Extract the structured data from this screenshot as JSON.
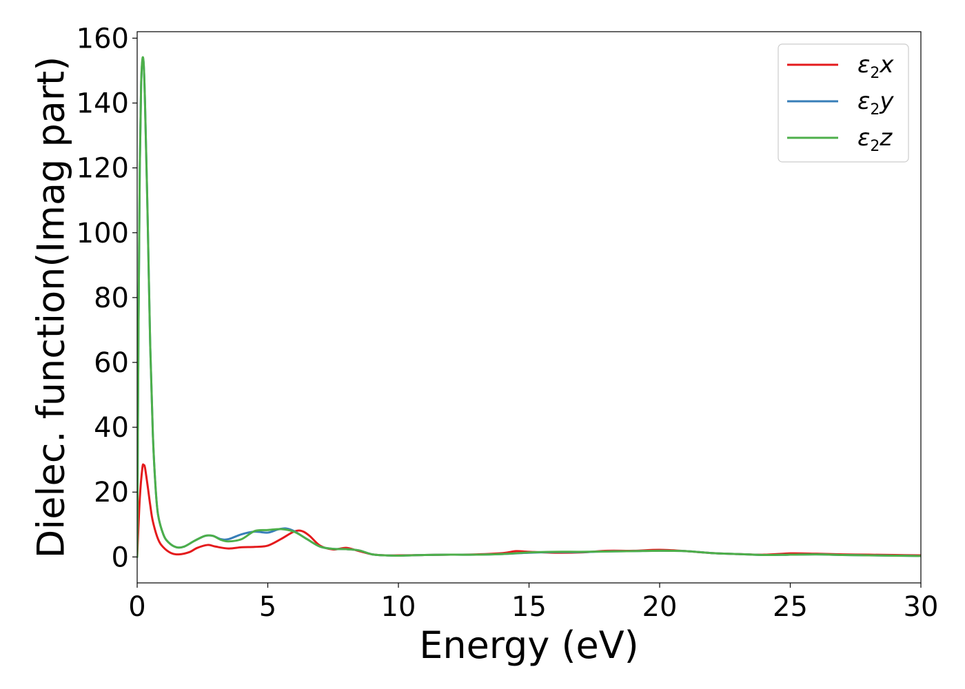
{
  "chart_data": {
    "type": "line",
    "xlabel": "Energy (eV)",
    "ylabel": "Dielec. function(Imag part)",
    "xlim": [
      0,
      30
    ],
    "ylim": [
      -8,
      162
    ],
    "xticks": [
      0,
      5,
      10,
      15,
      20,
      25,
      30
    ],
    "yticks": [
      0,
      20,
      40,
      60,
      80,
      100,
      120,
      140,
      160
    ],
    "legend_position": "top-right",
    "grid": false,
    "series": [
      {
        "name": "ε2x",
        "label_base": "ε",
        "label_sub": "2",
        "label_var": "x",
        "color": "#e41a1c",
        "x": [
          0,
          0.1,
          0.2,
          0.25,
          0.3,
          0.4,
          0.5,
          0.6,
          0.8,
          1.0,
          1.3,
          1.6,
          2.0,
          2.3,
          2.7,
          3.0,
          3.5,
          4.0,
          4.5,
          5.0,
          5.5,
          6.0,
          6.3,
          6.6,
          7.0,
          7.5,
          8.0,
          8.5,
          9.0,
          9.5,
          10,
          11,
          12,
          13,
          14,
          14.5,
          15,
          16,
          17,
          18,
          19,
          20,
          21,
          22,
          23,
          24,
          25,
          26,
          27,
          28,
          29,
          30
        ],
        "y": [
          0,
          18,
          27.5,
          28.3,
          27.5,
          22,
          16,
          11,
          5.5,
          3,
          1.2,
          0.8,
          1.5,
          2.8,
          3.7,
          3.2,
          2.6,
          3.0,
          3.1,
          3.5,
          5.5,
          7.8,
          8.0,
          6.5,
          3.5,
          2.3,
          2.8,
          1.8,
          0.8,
          0.5,
          0.5,
          0.6,
          0.7,
          0.8,
          1.2,
          1.8,
          1.6,
          1.3,
          1.4,
          1.9,
          1.9,
          2.2,
          1.8,
          1.2,
          0.9,
          0.7,
          1.1,
          1.0,
          0.8,
          0.7,
          0.6,
          0.5
        ]
      },
      {
        "name": "ε2y",
        "label_base": "ε",
        "label_sub": "2",
        "label_var": "y",
        "color": "#377eb8",
        "x": [
          0,
          0.05,
          0.1,
          0.15,
          0.2,
          0.25,
          0.3,
          0.4,
          0.5,
          0.6,
          0.7,
          0.8,
          1.0,
          1.2,
          1.5,
          1.8,
          2.2,
          2.6,
          2.9,
          3.2,
          3.5,
          4.0,
          4.5,
          5.0,
          5.4,
          5.7,
          6.0,
          6.5,
          7.0,
          7.5,
          8.0,
          8.5,
          9.0,
          9.5,
          10,
          11,
          12,
          13,
          14,
          15,
          16,
          17,
          18,
          19,
          20,
          21,
          22,
          23,
          24,
          25,
          26,
          27,
          28,
          29,
          30
        ],
        "y": [
          0,
          70,
          120,
          145,
          153,
          152,
          140,
          105,
          65,
          38,
          22,
          13,
          7,
          4.5,
          3,
          3.2,
          5,
          6.5,
          6.5,
          5.5,
          5.5,
          7,
          7.8,
          7.5,
          8.5,
          8.8,
          8,
          5.5,
          3.2,
          2.5,
          2.4,
          2,
          0.8,
          0.5,
          0.4,
          0.6,
          0.7,
          0.7,
          0.9,
          1.3,
          1.5,
          1.5,
          1.7,
          1.8,
          1.9,
          1.8,
          1.2,
          0.9,
          0.6,
          0.7,
          0.8,
          0.6,
          0.5,
          0.4,
          0.3
        ]
      },
      {
        "name": "ε2z",
        "label_base": "ε",
        "label_sub": "2",
        "label_var": "z",
        "color": "#4daf4a",
        "x": [
          0,
          0.05,
          0.1,
          0.15,
          0.2,
          0.25,
          0.3,
          0.4,
          0.5,
          0.6,
          0.7,
          0.8,
          1.0,
          1.2,
          1.5,
          1.8,
          2.2,
          2.6,
          2.9,
          3.2,
          3.5,
          4.0,
          4.5,
          5.0,
          5.5,
          6.0,
          6.5,
          7.0,
          7.5,
          8.0,
          8.5,
          9.0,
          9.5,
          10,
          11,
          12,
          13,
          14,
          15,
          16,
          17,
          18,
          19,
          20,
          21,
          22,
          23,
          24,
          25,
          26,
          27,
          28,
          29,
          30
        ],
        "y": [
          0,
          70,
          120,
          145,
          153.5,
          152,
          140,
          105,
          65,
          38,
          22,
          13,
          7,
          4.5,
          3,
          3.2,
          5,
          6.5,
          6.5,
          5.3,
          4.8,
          5.5,
          8,
          8.3,
          8.6,
          7.8,
          5.5,
          3.2,
          2.5,
          2.4,
          2,
          0.8,
          0.5,
          0.4,
          0.6,
          0.7,
          0.7,
          0.9,
          1.4,
          1.6,
          1.6,
          1.7,
          1.8,
          1.9,
          1.8,
          1.2,
          0.9,
          0.6,
          0.7,
          0.8,
          0.6,
          0.5,
          0.4,
          0.3
        ]
      }
    ]
  }
}
